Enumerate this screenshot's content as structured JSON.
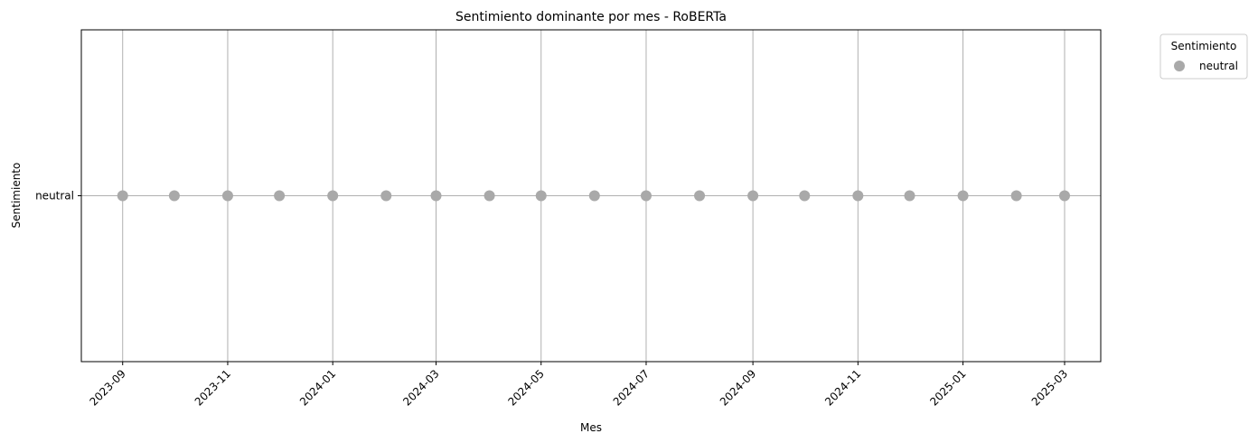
{
  "chart_data": {
    "type": "scatter",
    "title": "Sentimiento dominante por mes - RoBERTa",
    "xlabel": "Mes",
    "ylabel": "Sentimiento",
    "y_categories": [
      "neutral"
    ],
    "x_tick_labels": [
      "2023-09",
      "2023-11",
      "2024-01",
      "2024-03",
      "2024-05",
      "2024-07",
      "2024-09",
      "2024-11",
      "2025-01",
      "2025-03"
    ],
    "x_range": [
      "2023-08-08",
      "2025-03-22"
    ],
    "grid": true,
    "legend": {
      "title": "Sentimiento",
      "placement": "outside-top-right"
    },
    "series": [
      {
        "name": "neutral",
        "color": "#a9a9a9",
        "points": [
          {
            "x": "2023-09-01",
            "y": "neutral"
          },
          {
            "x": "2023-10-01",
            "y": "neutral"
          },
          {
            "x": "2023-11-01",
            "y": "neutral"
          },
          {
            "x": "2023-12-01",
            "y": "neutral"
          },
          {
            "x": "2024-01-01",
            "y": "neutral"
          },
          {
            "x": "2024-02-01",
            "y": "neutral"
          },
          {
            "x": "2024-03-01",
            "y": "neutral"
          },
          {
            "x": "2024-04-01",
            "y": "neutral"
          },
          {
            "x": "2024-05-01",
            "y": "neutral"
          },
          {
            "x": "2024-06-01",
            "y": "neutral"
          },
          {
            "x": "2024-07-01",
            "y": "neutral"
          },
          {
            "x": "2024-08-01",
            "y": "neutral"
          },
          {
            "x": "2024-09-01",
            "y": "neutral"
          },
          {
            "x": "2024-10-01",
            "y": "neutral"
          },
          {
            "x": "2024-11-01",
            "y": "neutral"
          },
          {
            "x": "2024-12-01",
            "y": "neutral"
          },
          {
            "x": "2025-01-01",
            "y": "neutral"
          },
          {
            "x": "2025-02-01",
            "y": "neutral"
          },
          {
            "x": "2025-03-01",
            "y": "neutral"
          }
        ]
      }
    ]
  }
}
